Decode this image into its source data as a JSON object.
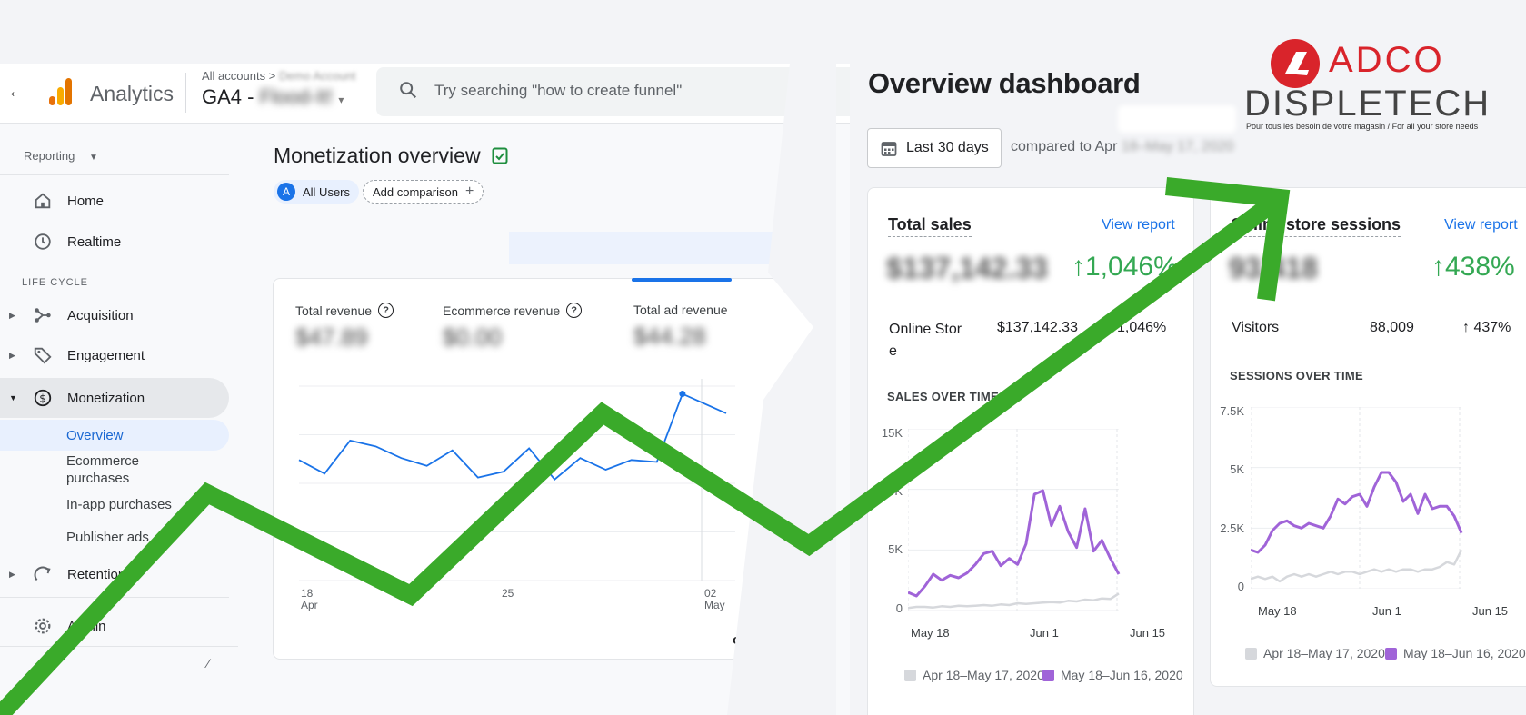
{
  "ga": {
    "brand": "Analytics",
    "breadcrumb_all": "All accounts",
    "breadcrumb_sep": ">",
    "breadcrumb_account": "Demo Account",
    "property_prefix": "GA4 -",
    "property_name": "Flood-It!",
    "search_placeholder": "Try searching \"how to create funnel\"",
    "reporting_label": "Reporting",
    "nav": {
      "home": "Home",
      "realtime": "Realtime",
      "lifecycle": "LIFE CYCLE",
      "acquisition": "Acquisition",
      "engagement": "Engagement",
      "monetization": "Monetization",
      "overview": "Overview",
      "ecommerce_1": "Ecommerce",
      "ecommerce_2": "purchases",
      "inapp": "In-app purchases",
      "publisher": "Publisher ads",
      "retention": "Retention",
      "admin": "Admin"
    },
    "page_title": "Monetization overview",
    "chip_all_letter": "A",
    "chip_all_users": "All Users",
    "chip_add": "Add comparison",
    "metrics": [
      {
        "label": "Total revenue",
        "value": "$47.89"
      },
      {
        "label": "Ecommerce revenue",
        "value": "$0.00"
      },
      {
        "label": "Total ad revenue",
        "value": "$44.28"
      }
    ],
    "x_ticks": [
      {
        "day": "18",
        "month": "Apr"
      },
      {
        "day": "25",
        "month": ""
      },
      {
        "day": "02",
        "month": "May"
      }
    ],
    "trailing_text": "op",
    "revenue_series": [
      0.62,
      0.55,
      0.72,
      0.69,
      0.63,
      0.59,
      0.67,
      0.53,
      0.56,
      0.68,
      0.52,
      0.63,
      0.57,
      0.62,
      0.61,
      0.96,
      0.86
    ]
  },
  "dashboard": {
    "title": "Overview dashboard",
    "date_range": "Last 30 days",
    "compared": "compared to Apr",
    "compared_blur": "18–May 17, 2020",
    "sales": {
      "title": "Total sales",
      "view_report": "View report",
      "total": "$137,142.33",
      "change": "↑1,046%",
      "row_label_1": "Online Stor",
      "row_label_2": "e",
      "row_value": "$137,142.33",
      "row_change": "↑1,046%",
      "section": "SALES OVER TIME",
      "y_ticks": [
        "15K",
        "10K",
        "5K",
        "0"
      ],
      "x_ticks": [
        "May 18",
        "Jun 1",
        "Jun 15"
      ]
    },
    "sessions": {
      "title": "Online store sessions",
      "view_report": "View report",
      "total": "93,418",
      "change": "↑438%",
      "row_label": "Visitors",
      "row_value": "88,009",
      "row_change": "↑ 437%",
      "section": "SESSIONS OVER TIME",
      "y_ticks": [
        "7.5K",
        "5K",
        "2.5K",
        "0"
      ],
      "x_ticks": [
        "May 18",
        "Jun 1",
        "Jun 15"
      ]
    },
    "legend_prev": "Apr 18–May 17, 2020",
    "legend_curr": "May 18–Jun 16, 2020"
  },
  "logo": {
    "line1": "ADCO",
    "line2": "DISPLETECH",
    "tagline": "Pour tous les besoin de votre magasin / For all your store needs"
  },
  "colors": {
    "accent_blue": "#1a73e8",
    "green_arrow": "#3aaa2a",
    "purple_series": "#a064d8",
    "grey_series": "#d6d8dc",
    "growth_green": "#34a853",
    "logo_red": "#d9242b"
  },
  "chart_data": [
    {
      "type": "line",
      "title": "Total sales",
      "xlabel": "",
      "ylabel": "",
      "ylim": [
        0,
        15000
      ],
      "x_ticks": [
        "May 18",
        "Jun 1",
        "Jun 15"
      ],
      "series": [
        {
          "name": "May 18–Jun 16, 2020",
          "values": [
            1500,
            1200,
            2000,
            3000,
            2500,
            2900,
            2700,
            3100,
            3800,
            4700,
            4900,
            3700,
            4300,
            3800,
            5500,
            9600,
            9900,
            7000,
            8600,
            6500,
            5200,
            8400,
            4900,
            5800,
            4300,
            3000
          ]
        },
        {
          "name": "Apr 18–May 17, 2020",
          "values": [
            200,
            300,
            300,
            250,
            350,
            300,
            400,
            350,
            400,
            450,
            400,
            500,
            450,
            600,
            550,
            600,
            650,
            700,
            650,
            800,
            750,
            900,
            850,
            1000,
            950,
            1400
          ]
        }
      ]
    },
    {
      "type": "line",
      "title": "Online store sessions",
      "xlabel": "",
      "ylabel": "",
      "ylim": [
        0,
        7500
      ],
      "x_ticks": [
        "May 18",
        "Jun 1",
        "Jun 15"
      ],
      "series": [
        {
          "name": "May 18–Jun 16, 2020",
          "values": [
            1600,
            1500,
            1800,
            2400,
            2700,
            2800,
            2600,
            2500,
            2700,
            2600,
            2500,
            3000,
            3700,
            3500,
            3800,
            3900,
            3400,
            4200,
            4800,
            4800,
            4400,
            3600,
            3900,
            3100,
            3900,
            3300,
            3400,
            3400,
            3000,
            2300
          ]
        },
        {
          "name": "Apr 18–May 17, 2020",
          "values": [
            400,
            500,
            400,
            500,
            300,
            500,
            600,
            500,
            600,
            500,
            600,
            700,
            600,
            700,
            700,
            600,
            700,
            800,
            700,
            800,
            700,
            800,
            800,
            700,
            800,
            800,
            900,
            1100,
            1000,
            1600
          ]
        }
      ]
    }
  ]
}
